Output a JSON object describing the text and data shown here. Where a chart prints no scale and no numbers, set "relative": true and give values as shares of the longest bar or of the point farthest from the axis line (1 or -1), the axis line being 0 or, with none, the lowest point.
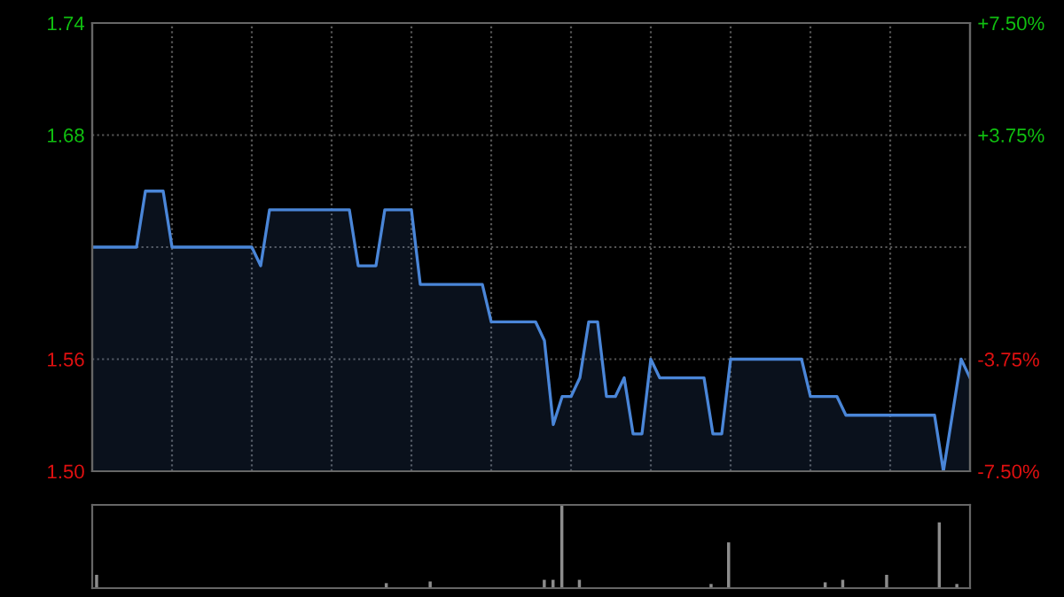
{
  "chart_data": [
    {
      "type": "area",
      "categories": [
        null,
        null,
        null,
        null,
        null,
        null,
        null,
        null,
        null,
        null,
        null,
        null,
        null,
        null,
        null,
        null,
        null,
        null,
        null,
        null,
        null,
        null,
        null,
        null,
        null,
        null,
        null,
        null,
        null,
        null,
        null,
        null,
        null,
        null,
        null,
        null,
        null,
        null,
        null,
        null,
        null,
        null,
        null,
        null,
        null,
        null,
        null,
        null,
        null,
        null,
        null,
        null,
        null,
        null,
        null,
        null,
        null,
        null,
        null,
        null,
        null,
        null,
        null,
        null,
        null,
        null,
        null,
        null,
        null,
        null,
        null,
        null,
        null,
        null,
        null,
        null,
        null,
        null,
        null,
        null,
        null,
        null,
        null,
        null,
        null,
        null,
        null,
        null,
        null,
        null,
        null,
        null,
        null,
        null,
        null,
        null,
        null,
        null,
        null,
        null
      ],
      "series": [
        {
          "color": "#4a86d8",
          "values": [
            1.62,
            1.62,
            1.62,
            1.62,
            1.62,
            1.62,
            1.65,
            1.65,
            1.65,
            1.62,
            1.62,
            1.62,
            1.62,
            1.62,
            1.62,
            1.62,
            1.62,
            1.62,
            1.62,
            1.61,
            1.64,
            1.64,
            1.64,
            1.64,
            1.64,
            1.64,
            1.64,
            1.64,
            1.64,
            1.64,
            1.61,
            1.61,
            1.61,
            1.64,
            1.64,
            1.64,
            1.64,
            1.6,
            1.6,
            1.6,
            1.6,
            1.6,
            1.6,
            1.6,
            1.6,
            1.58,
            1.58,
            1.58,
            1.58,
            1.58,
            1.58,
            1.57,
            1.525,
            1.54,
            1.54,
            1.55,
            1.58,
            1.58,
            1.54,
            1.54,
            1.55,
            1.52,
            1.52,
            1.56,
            1.55,
            1.55,
            1.55,
            1.55,
            1.55,
            1.55,
            1.52,
            1.52,
            1.56,
            1.56,
            1.56,
            1.56,
            1.56,
            1.56,
            1.56,
            1.56,
            1.56,
            1.54,
            1.54,
            1.54,
            1.54,
            1.53,
            1.53,
            1.53,
            1.53,
            1.53,
            1.53,
            1.53,
            1.53,
            1.53,
            1.53,
            1.53,
            1.5,
            1.53,
            1.56,
            1.55
          ]
        }
      ],
      "ylim": [
        1.5,
        1.74
      ],
      "yticks": [
        {
          "value": 1.5,
          "label": "1.50"
        },
        1.56,
        {
          "value": 1.62,
          "label": null
        },
        1.68,
        1.74
      ],
      "y2lim": [
        -7.5,
        7.5
      ],
      "y2ticks": [
        {
          "value": -7.5,
          "label": "-7.50%"
        },
        {
          "value": -3.75,
          "label": "-3.75%"
        },
        {
          "value": 0,
          "label": null
        },
        {
          "value": 3.75,
          "label": "+3.75%"
        },
        {
          "value": 7.5,
          "label": "+7.50%"
        }
      ],
      "grid": true
    },
    {
      "type": "bar",
      "relative": true,
      "categories": [
        null,
        null,
        null,
        null,
        null,
        null,
        null,
        null,
        null,
        null,
        null,
        null,
        null,
        null,
        null,
        null,
        null,
        null,
        null,
        null,
        null,
        null,
        null,
        null,
        null,
        null,
        null,
        null,
        null,
        null,
        null,
        null,
        null,
        null,
        null,
        null,
        null,
        null,
        null,
        null,
        null,
        null,
        null,
        null,
        null,
        null,
        null,
        null,
        null,
        null,
        null,
        null,
        null,
        null,
        null,
        null,
        null,
        null,
        null,
        null,
        null,
        null,
        null,
        null,
        null,
        null,
        null,
        null,
        null,
        null,
        null,
        null,
        null,
        null,
        null,
        null,
        null,
        null,
        null,
        null,
        null,
        null,
        null,
        null,
        null,
        null,
        null,
        null,
        null,
        null,
        null,
        null,
        null,
        null,
        null,
        null,
        null,
        null,
        null,
        null
      ],
      "color": "#8c8c8c",
      "values": [
        0.16,
        0.01,
        0.01,
        0.01,
        0.01,
        0.01,
        0.01,
        0.01,
        0.01,
        0.01,
        0.01,
        0.01,
        0.01,
        0.01,
        0.01,
        0.01,
        0.01,
        0.01,
        0.01,
        0.01,
        0.01,
        0.01,
        0.01,
        0.01,
        0.01,
        0.01,
        0.01,
        0.01,
        0.01,
        0.01,
        0.01,
        0.01,
        0.01,
        0.06,
        0.01,
        0.01,
        0.01,
        0.01,
        0.08,
        0.01,
        0.01,
        0.01,
        0.01,
        0.01,
        0.01,
        0.01,
        0.01,
        0.01,
        0.01,
        0.01,
        0.01,
        0.1,
        0.1,
        1.0,
        0.01,
        0.1,
        0.01,
        0.01,
        0.01,
        0.01,
        0.01,
        0.01,
        0.01,
        0.01,
        0.01,
        0.01,
        0.01,
        0.01,
        0.01,
        0.01,
        0.05,
        0.01,
        0.55,
        0.01,
        0.01,
        0.01,
        0.01,
        0.01,
        0.01,
        0.01,
        0.01,
        0.01,
        0.01,
        0.07,
        0.01,
        0.1,
        0.01,
        0.01,
        0.01,
        0.01,
        0.16,
        0.01,
        0.01,
        0.01,
        0.01,
        0.01,
        0.79,
        0.01,
        0.05,
        0.01
      ]
    }
  ]
}
